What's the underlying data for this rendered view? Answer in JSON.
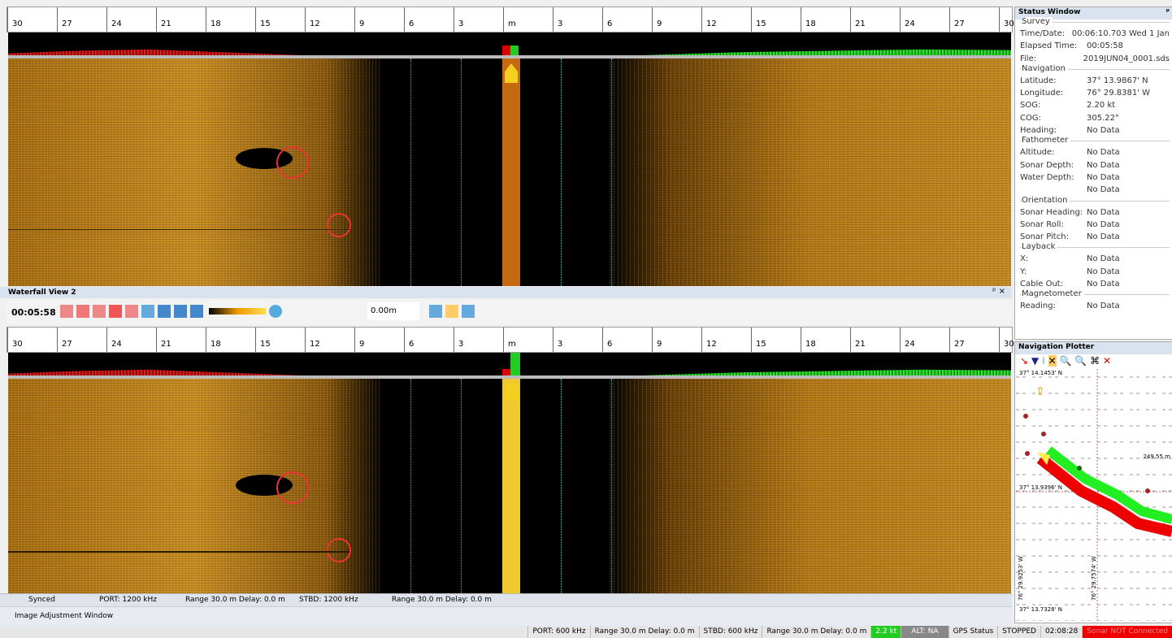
{
  "ruler": [
    "30",
    "27",
    "24",
    "21",
    "18",
    "15",
    "12",
    "9",
    "6",
    "3",
    "m",
    "3",
    "6",
    "9",
    "12",
    "15",
    "18",
    "21",
    "24",
    "27",
    "30"
  ],
  "waterfall_view_2": {
    "title": "Waterfall View 2",
    "time": "00:05:58",
    "range": "0.00m"
  },
  "channel_status": [
    "Synced",
    "PORT: 1200 kHz",
    "Range 30.0 m Delay: 0.0 m",
    "STBD: 1200 kHz",
    "Range 30.0 m Delay: 0.0 m"
  ],
  "image_adjustment": "Image Adjustment Window",
  "status_bar": [
    "PORT: 600 kHz",
    "Range 30.0 m Delay: 0.0 m",
    "STBD: 600 kHz",
    "Range 30.0 m Delay: 0.0 m",
    "2.2 kt",
    "ALT: NA",
    "GPS Status",
    "STOPPED",
    "02:08:28",
    "Sonar NOT Connected"
  ],
  "status_window": {
    "title": "Status Window",
    "sections": [
      {
        "name": "Survey",
        "rows": [
          {
            "label": "Time/Date:",
            "value": "00:06:10.703 Wed 1 Jan"
          },
          {
            "label": "Elapsed Time:",
            "value": "00:05:58"
          },
          {
            "label": "File:",
            "value": "2019JUN04_0001.sds"
          }
        ]
      },
      {
        "name": "Navigation",
        "rows": [
          {
            "label": "Latitude:",
            "value": "37° 13.9867' N"
          },
          {
            "label": "Longitude:",
            "value": "76° 29.8381' W"
          },
          {
            "label": "SOG:",
            "value": "2.20 kt"
          },
          {
            "label": "COG:",
            "value": "305.22°"
          },
          {
            "label": "Heading:",
            "value": "No Data"
          }
        ]
      },
      {
        "name": "Fathometer",
        "rows": [
          {
            "label": "Altitude:",
            "value": "No Data"
          },
          {
            "label": "Sonar Depth:",
            "value": "No Data"
          },
          {
            "label": "Water Depth:",
            "value": "No Data"
          },
          {
            "value": "No Data"
          }
        ]
      },
      {
        "name": "Orientation",
        "rows": [
          {
            "label": "Sonar Heading:",
            "value": "No Data"
          },
          {
            "label": "Sonar Roll:",
            "value": "No Data"
          },
          {
            "label": "Sonar Pitch:",
            "value": "No Data"
          }
        ]
      },
      {
        "name": "Layback",
        "rows": [
          {
            "label": "X:",
            "value": "No Data"
          },
          {
            "label": "Y:",
            "value": "No Data"
          },
          {
            "label": "Cable Out:",
            "value": "No Data"
          }
        ]
      },
      {
        "name": "Magnetometer",
        "rows": [
          {
            "label": "Reading:",
            "value": "No Data"
          }
        ]
      }
    ]
  },
  "navigation_plotter": {
    "title": "Navigation Plotter",
    "lat_top": "37° 14.1453' N",
    "lat_mid": "37° 13.9396' N",
    "lat_bottom": "37° 13.7328' N",
    "scale": "249.55 m",
    "lon_left": "76° 29.9253' W",
    "lon_mid": "76° 29.7574' W"
  }
}
